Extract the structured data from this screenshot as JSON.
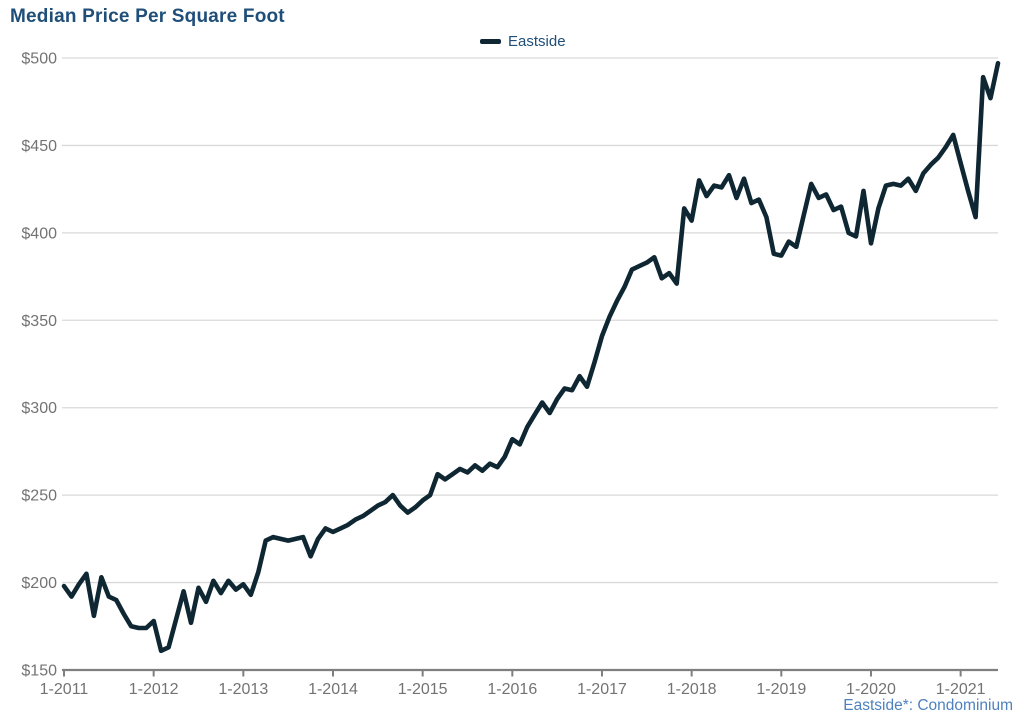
{
  "page": {
    "title": "Median Price Per Square Foot"
  },
  "legend": {
    "items": [
      {
        "label": "Eastside",
        "swatch_color": "#0E2733"
      }
    ]
  },
  "footnote": {
    "text": "Eastside*: Condominium"
  },
  "colors": {
    "title_text": "#1F4E79",
    "legend_text": "#1F4E79",
    "series_line": "#0E2733",
    "gridline": "#D9D9D9",
    "axis_line": "#7F7F7F",
    "axis_text": "#737373",
    "footnote_text": "#4E81BD",
    "background": "#FFFFFF"
  },
  "chart_data": {
    "type": "line",
    "title": "Median Price Per Square Foot",
    "xlabel": "",
    "ylabel": "",
    "x_interval": "monthly",
    "x_start": "2011-01",
    "x_end": "2021-06",
    "x_tick_labels": [
      "1-2011",
      "1-2012",
      "1-2013",
      "1-2014",
      "1-2015",
      "1-2016",
      "1-2017",
      "1-2018",
      "1-2019",
      "1-2020",
      "1-2021"
    ],
    "x_ticks_every_n_points": 12,
    "y_ticks": [
      150,
      200,
      250,
      300,
      350,
      400,
      450,
      500
    ],
    "y_tick_labels": [
      "$150",
      "$200",
      "$250",
      "$300",
      "$350",
      "$400",
      "$450",
      "$500"
    ],
    "y_tick_prefix": "$",
    "ylim": [
      150,
      500
    ],
    "grid": "horizontal",
    "legend_position": "top-center",
    "series": [
      {
        "name": "Eastside",
        "color": "#0E2733",
        "values": [
          198,
          192,
          199,
          205,
          181,
          203,
          192,
          190,
          182,
          175,
          174,
          174,
          178,
          161,
          163,
          179,
          195,
          177,
          197,
          189,
          201,
          194,
          201,
          196,
          199,
          193,
          206,
          224,
          226,
          225,
          224,
          225,
          226,
          215,
          225,
          231,
          229,
          231,
          233,
          236,
          238,
          241,
          244,
          246,
          250,
          244,
          240,
          243,
          247,
          250,
          262,
          259,
          262,
          265,
          263,
          267,
          264,
          268,
          266,
          272,
          282,
          279,
          289,
          296,
          303,
          297,
          305,
          311,
          310,
          318,
          312,
          326,
          341,
          352,
          361,
          369,
          379,
          381,
          383,
          386,
          374,
          377,
          371,
          414,
          407,
          430,
          421,
          427,
          426,
          433,
          420,
          431,
          417,
          419,
          409,
          388,
          387,
          395,
          392,
          410,
          428,
          420,
          422,
          413,
          415,
          400,
          398,
          424,
          394,
          414,
          427,
          428,
          427,
          431,
          424,
          434,
          439,
          443,
          449,
          456,
          440,
          424,
          409,
          489,
          477,
          497
        ]
      }
    ]
  }
}
